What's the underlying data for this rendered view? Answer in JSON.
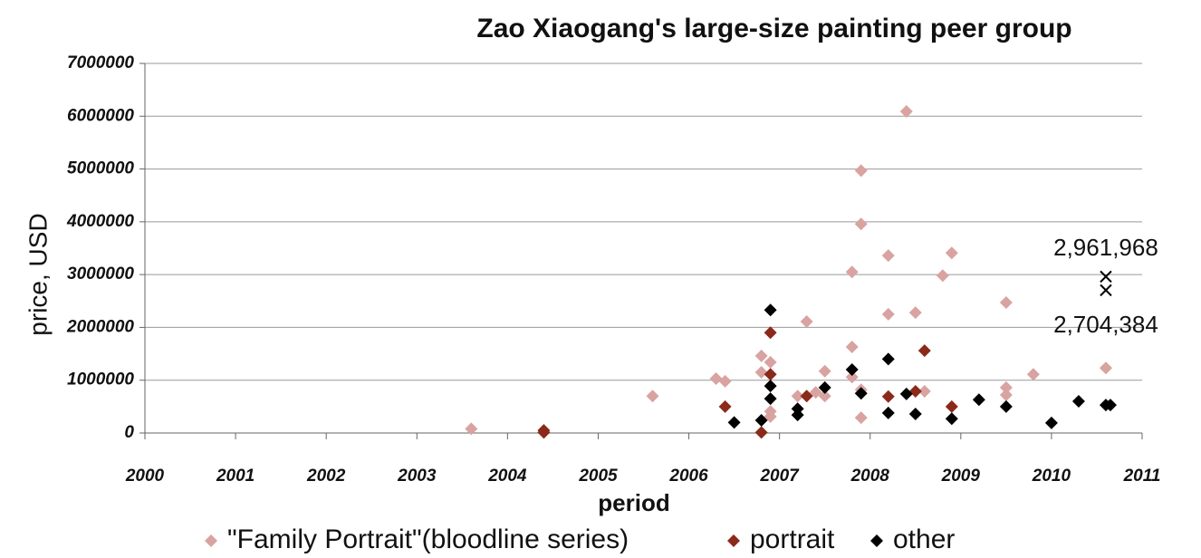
{
  "chart_data": {
    "type": "scatter",
    "title": "Zao Xiaogang's large-size painting peer group",
    "xlabel": "period",
    "ylabel": "price, USD",
    "xlim": [
      2000,
      2011
    ],
    "ylim": [
      0,
      7000000
    ],
    "xticks": [
      2000,
      2001,
      2002,
      2003,
      2004,
      2005,
      2006,
      2007,
      2008,
      2009,
      2010,
      2011
    ],
    "yticks": [
      0,
      1000000,
      2000000,
      3000000,
      4000000,
      5000000,
      6000000,
      7000000
    ],
    "grid": true,
    "legend": "bottom",
    "series": [
      {
        "name": "\"Family Portrait\"(bloodline series)",
        "color": "#d8a3a0",
        "x": [
          2003.6,
          2005.6,
          2006.3,
          2006.4,
          2006.8,
          2006.8,
          2006.9,
          2006.9,
          2006.9,
          2007.2,
          2007.3,
          2007.4,
          2007.5,
          2007.5,
          2007.8,
          2007.8,
          2007.8,
          2007.9,
          2007.9,
          2007.9,
          2007.9,
          2008.2,
          2008.2,
          2008.4,
          2008.5,
          2008.6,
          2008.8,
          2008.9,
          2009.5,
          2009.5,
          2009.5,
          2009.8,
          2010.6
        ],
        "values": [
          80000,
          700000,
          1030000,
          980000,
          1460000,
          1150000,
          1340000,
          410000,
          310000,
          700000,
          2110000,
          770000,
          1170000,
          700000,
          3050000,
          1630000,
          1060000,
          4970000,
          3960000,
          820000,
          290000,
          3360000,
          2250000,
          6090000,
          2280000,
          790000,
          2980000,
          3410000,
          2470000,
          860000,
          720000,
          1110000,
          1230000
        ]
      },
      {
        "name": "portrait",
        "color": "#8b2a1a",
        "x": [
          2004.4,
          2004.4,
          2006.4,
          2006.8,
          2006.9,
          2006.9,
          2007.3,
          2008.2,
          2008.5,
          2008.6,
          2008.9
        ],
        "values": [
          50000,
          10000,
          500000,
          10000,
          1900000,
          1110000,
          700000,
          690000,
          790000,
          1560000,
          500000
        ]
      },
      {
        "name": "other",
        "color": "#000000",
        "x": [
          2006.5,
          2006.8,
          2006.9,
          2006.9,
          2006.9,
          2007.2,
          2007.2,
          2007.5,
          2007.8,
          2007.9,
          2008.2,
          2008.2,
          2008.4,
          2008.5,
          2008.9,
          2009.2,
          2009.5,
          2010.0,
          2010.3,
          2010.6,
          2010.65
        ],
        "values": [
          200000,
          240000,
          2330000,
          890000,
          650000,
          460000,
          340000,
          860000,
          1200000,
          750000,
          1400000,
          380000,
          740000,
          360000,
          270000,
          630000,
          500000,
          190000,
          600000,
          530000,
          530000
        ]
      }
    ],
    "annotations": [
      {
        "x": 2010.6,
        "y": 2961968,
        "label": "2,961,968"
      },
      {
        "x": 2010.6,
        "y": 2704384,
        "label": "2,704,384"
      }
    ]
  }
}
